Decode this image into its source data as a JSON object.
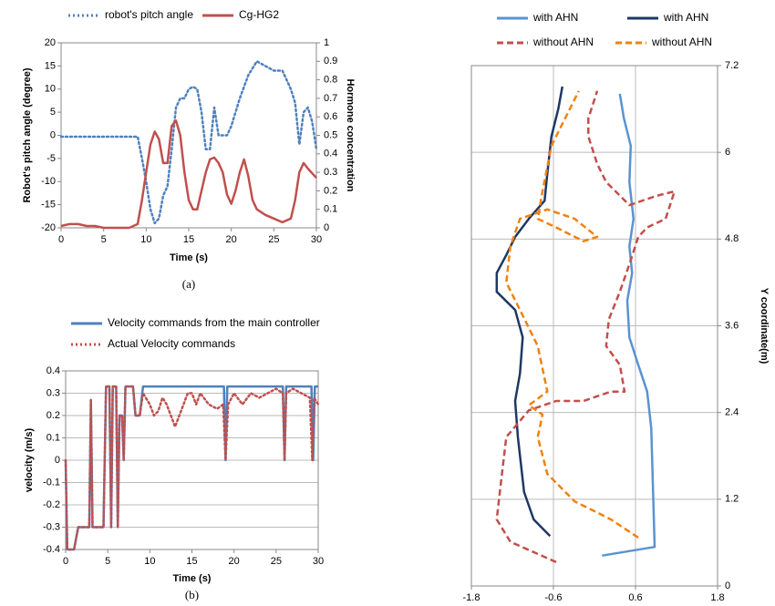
{
  "chart_data": [
    {
      "type": "line",
      "caption": "(a)",
      "xlabel": "Time (s)",
      "ylabel": "Robot's pitch angle (degree)",
      "y2label": "Hormone concentration",
      "xlim": [
        0,
        30
      ],
      "xticks": [
        0,
        5,
        10,
        15,
        20,
        25,
        30
      ],
      "ylim": [
        -20,
        20
      ],
      "yticks": [
        -20,
        -15,
        -10,
        -5,
        0,
        5,
        10,
        15,
        20
      ],
      "y2lim": [
        0,
        1
      ],
      "y2ticks": [
        0,
        0.1,
        0.2,
        0.3,
        0.4,
        0.5,
        0.6,
        0.7,
        0.8,
        0.9,
        1
      ],
      "grid": false,
      "legend": "top",
      "series": [
        {
          "name": "robot's pitch angle",
          "color": "#4f81bd",
          "linestyle": "dotted",
          "x": [
            0,
            2,
            4,
            6,
            8,
            9,
            9.5,
            10,
            10.5,
            11,
            11.5,
            12,
            12.5,
            13,
            13.5,
            14,
            14.5,
            15,
            15.5,
            16,
            16.5,
            17,
            17.5,
            18,
            18.5,
            19,
            19.5,
            20,
            21,
            22,
            23,
            24,
            25,
            26,
            27,
            27.5,
            28,
            28.5,
            29,
            29.5,
            30
          ],
          "values": [
            -0.3,
            -0.3,
            -0.3,
            -0.3,
            -0.3,
            -0.3,
            -5,
            -10,
            -16,
            -19,
            -18,
            -13,
            -11,
            -3,
            6,
            8,
            8,
            10,
            10.5,
            10,
            5,
            -3,
            -3,
            6,
            0,
            0,
            0,
            2,
            8,
            13,
            16,
            15,
            14,
            14,
            10,
            7,
            -2,
            5,
            6,
            3,
            -3
          ]
        },
        {
          "name": "Cg-HG2",
          "color": "#c0504d",
          "linestyle": "solid",
          "axis": "y2",
          "x": [
            0,
            1,
            2,
            3,
            4,
            5,
            8,
            9,
            9.5,
            10,
            10.5,
            11,
            11.5,
            12,
            12.5,
            13,
            13.5,
            14,
            14.5,
            15,
            15.5,
            16,
            16.5,
            17,
            17.5,
            18,
            18.5,
            19,
            19.5,
            20,
            20.5,
            21,
            21.5,
            22,
            22.5,
            23,
            24,
            25,
            26,
            27,
            27.5,
            28,
            28.5,
            29,
            30
          ],
          "values": [
            0.01,
            0.02,
            0.02,
            0.01,
            0.01,
            0,
            0,
            0.02,
            0.15,
            0.3,
            0.45,
            0.52,
            0.48,
            0.35,
            0.35,
            0.55,
            0.58,
            0.5,
            0.3,
            0.15,
            0.1,
            0.1,
            0.2,
            0.3,
            0.37,
            0.38,
            0.35,
            0.3,
            0.18,
            0.13,
            0.2,
            0.3,
            0.37,
            0.28,
            0.15,
            0.1,
            0.07,
            0.05,
            0.03,
            0.05,
            0.15,
            0.3,
            0.35,
            0.32,
            0.27
          ]
        }
      ]
    },
    {
      "type": "line",
      "caption": "(b)",
      "xlabel": "Time (s)",
      "ylabel": "velocity (m/s)",
      "xlim": [
        0,
        30
      ],
      "xticks": [
        0,
        5,
        10,
        15,
        20,
        25,
        30
      ],
      "ylim": [
        -0.4,
        0.4
      ],
      "yticks": [
        -0.4,
        -0.3,
        -0.2,
        -0.1,
        0,
        0.1,
        0.2,
        0.3,
        0.4
      ],
      "grid": true,
      "legend": "top",
      "series": [
        {
          "name": "Velocity commands from the main controller",
          "color": "#4f81bd",
          "linestyle": "solid",
          "x": [
            0,
            0.2,
            1,
            1.5,
            2.8,
            3,
            3.2,
            4.5,
            4.8,
            5.2,
            5.4,
            5.6,
            6,
            6.2,
            6.4,
            6.7,
            6.9,
            7.1,
            8,
            8.3,
            8.8,
            9.2,
            18.8,
            19,
            19.2,
            25.8,
            26,
            26.2,
            29.2,
            29.4,
            29.6,
            30
          ],
          "values": [
            0,
            -0.4,
            -0.4,
            -0.3,
            -0.3,
            0.27,
            -0.3,
            -0.3,
            0.33,
            0.33,
            -0.3,
            0.33,
            0.33,
            -0.3,
            0.2,
            0.2,
            0,
            0.33,
            0.33,
            0.2,
            0.2,
            0.33,
            0.33,
            0,
            0.33,
            0.33,
            0,
            0.33,
            0.33,
            0,
            0.33,
            0.33
          ]
        },
        {
          "name": "Actual Velocity commands",
          "color": "#c0504d",
          "linestyle": "dotted",
          "x": [
            0,
            0.2,
            1,
            1.5,
            2.8,
            3,
            3.2,
            4.5,
            4.8,
            5.2,
            5.4,
            5.6,
            6,
            6.2,
            6.4,
            6.7,
            6.9,
            7.1,
            8,
            8.3,
            8.8,
            9.2,
            10,
            10.5,
            11,
            11.5,
            12,
            12.5,
            13,
            13.5,
            14,
            14.5,
            15,
            15.5,
            16,
            17,
            18,
            18.7,
            19,
            19.3,
            20,
            21,
            22,
            23,
            24,
            25,
            25.8,
            26,
            26.2,
            27,
            28,
            29,
            29.3,
            29.5,
            30
          ],
          "values": [
            0,
            -0.4,
            -0.4,
            -0.3,
            -0.3,
            0.27,
            -0.3,
            -0.3,
            0.33,
            0.33,
            -0.3,
            0.33,
            0.33,
            -0.3,
            0.2,
            0.2,
            0,
            0.33,
            0.33,
            0.2,
            0.2,
            0.3,
            0.25,
            0.2,
            0.22,
            0.28,
            0.25,
            0.2,
            0.15,
            0.2,
            0.25,
            0.3,
            0.3,
            0.25,
            0.3,
            0.25,
            0.23,
            0.25,
            0,
            0.25,
            0.3,
            0.25,
            0.3,
            0.28,
            0.3,
            0.32,
            0.3,
            0,
            0.3,
            0.32,
            0.3,
            0.28,
            0,
            0.28,
            0.25
          ]
        }
      ]
    },
    {
      "type": "line",
      "ylabel": "Y coordinate(m)",
      "y_axis_side": "right",
      "xlim": [
        -1.8,
        1.8
      ],
      "xticks": [
        -1.8,
        -0.6,
        0.6,
        1.8
      ],
      "ylim": [
        0,
        7.2
      ],
      "yticks": [
        0,
        1.2,
        2.4,
        3.6,
        4.8,
        6,
        7.2
      ],
      "grid": true,
      "legend": "top",
      "series": [
        {
          "name": "with AHN",
          "color": "#5b93d0",
          "linestyle": "solid",
          "x": [
            0.11,
            0.88,
            0.83,
            0.77,
            0.64,
            0.51,
            0.48,
            0.55,
            0.51,
            0.57,
            0.51,
            0.53,
            0.43,
            0.37
          ],
          "values": [
            0.42,
            0.54,
            2.18,
            2.69,
            3.06,
            3.44,
            3.95,
            4.33,
            4.7,
            5.08,
            5.59,
            6.09,
            6.47,
            6.81
          ]
        },
        {
          "name": "with AHN",
          "color": "#1f3864",
          "linestyle": "solid",
          "x": [
            -0.65,
            -0.89,
            -1.03,
            -1.12,
            -1.16,
            -1.09,
            -1.05,
            -1.16,
            -1.43,
            -1.43,
            -1.29,
            -1.16,
            -0.96,
            -0.73,
            -0.69,
            -0.63,
            -0.53,
            -0.47
          ],
          "values": [
            0.69,
            0.92,
            1.3,
            2.06,
            2.56,
            2.94,
            3.44,
            3.82,
            4.07,
            4.33,
            4.58,
            4.83,
            5.08,
            5.33,
            5.71,
            6.22,
            6.6,
            6.91
          ]
        },
        {
          "name": "without AHN",
          "color": "#c0504d",
          "linestyle": "dashed",
          "x": [
            -0.56,
            -1.23,
            -1.43,
            -1.37,
            -1.29,
            -0.96,
            -0.56,
            -0.16,
            0.24,
            0.44,
            0.37,
            0.17,
            0.21,
            0.37,
            0.51,
            0.64,
            0.77,
            1.04,
            1.17,
            0.91,
            0.51,
            0.17,
            0.04,
            -0.09,
            -0.09,
            0.04
          ],
          "values": [
            0.33,
            0.61,
            0.92,
            1.42,
            2.06,
            2.43,
            2.56,
            2.56,
            2.69,
            2.69,
            3.06,
            3.32,
            3.69,
            4.07,
            4.45,
            4.83,
            4.96,
            5.08,
            5.46,
            5.4,
            5.27,
            5.59,
            5.84,
            6.22,
            6.47,
            6.85
          ]
        },
        {
          "name": "without AHN",
          "color": "#f0820f",
          "linestyle": "dashed",
          "x": [
            0.64,
            0.24,
            -0.29,
            -0.69,
            -0.83,
            -0.76,
            -0.96,
            -0.69,
            -0.83,
            -1.09,
            -1.29,
            -1.23,
            -1.09,
            -0.69,
            -0.29,
            0.04,
            -0.16,
            -0.56,
            -0.83,
            -0.76,
            -0.63,
            -0.43,
            -0.23
          ],
          "values": [
            0.67,
            0.92,
            1.17,
            1.55,
            2.06,
            2.37,
            2.5,
            2.69,
            3.32,
            3.82,
            4.2,
            4.7,
            5.08,
            5.21,
            5.08,
            4.83,
            4.77,
            4.96,
            5.08,
            5.46,
            6.09,
            6.47,
            6.85
          ]
        }
      ]
    }
  ]
}
